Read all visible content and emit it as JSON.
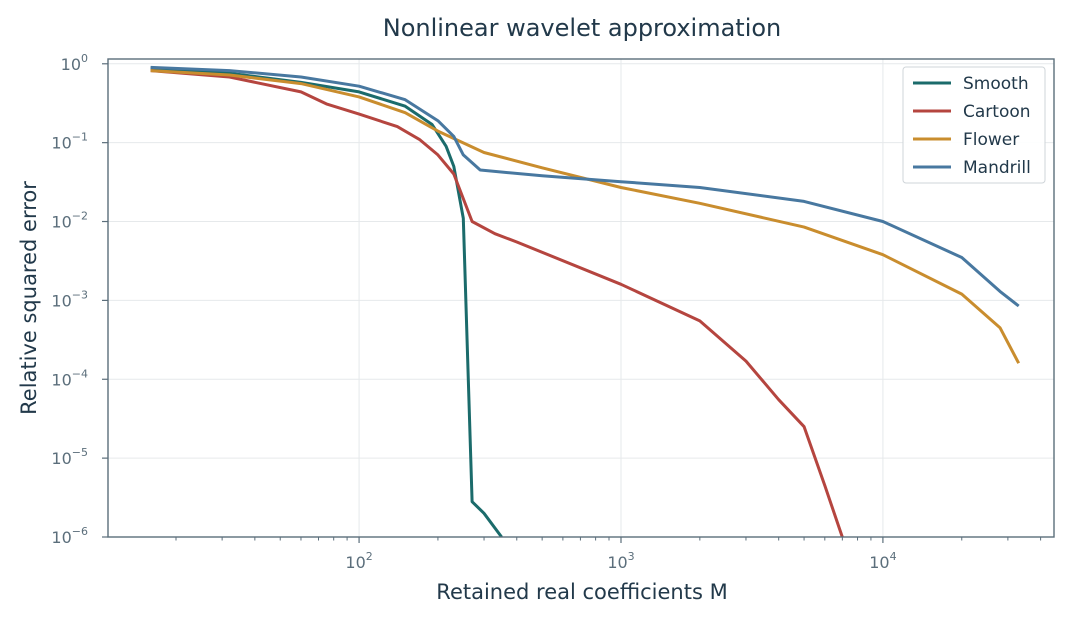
{
  "chart_data": {
    "type": "line",
    "title": "Nonlinear wavelet approximation",
    "xlabel": "Retained real coefficients M",
    "ylabel": "Relative squared error",
    "xscale": "log",
    "yscale": "log",
    "xlim": [
      11,
      45000
    ],
    "ylim": [
      1e-06,
      1.15
    ],
    "x_ticks": [
      {
        "value": 100,
        "base": "10",
        "exp": "2"
      },
      {
        "value": 1000,
        "base": "10",
        "exp": "3"
      },
      {
        "value": 10000,
        "base": "10",
        "exp": "4"
      }
    ],
    "y_ticks": [
      {
        "value": 1,
        "base": "10",
        "exp": "0"
      },
      {
        "value": 0.1,
        "base": "10",
        "exp": "−1"
      },
      {
        "value": 0.01,
        "base": "10",
        "exp": "−2"
      },
      {
        "value": 0.001,
        "base": "10",
        "exp": "−3"
      },
      {
        "value": 0.0001,
        "base": "10",
        "exp": "−4"
      },
      {
        "value": 1e-05,
        "base": "10",
        "exp": "−5"
      },
      {
        "value": 1e-06,
        "base": "10",
        "exp": "−6"
      }
    ],
    "grid": true,
    "legend_position": "top-right",
    "series": [
      {
        "name": "Smooth",
        "color": "#1b6b6b",
        "points": [
          [
            16,
            0.88
          ],
          [
            32,
            0.76
          ],
          [
            60,
            0.58
          ],
          [
            100,
            0.44
          ],
          [
            150,
            0.29
          ],
          [
            190,
            0.17
          ],
          [
            215,
            0.09
          ],
          [
            230,
            0.05
          ],
          [
            250,
            0.011
          ],
          [
            270,
            2.8e-06
          ],
          [
            300,
            2e-06
          ],
          [
            350,
            1e-06
          ]
        ]
      },
      {
        "name": "Cartoon",
        "color": "#b5453f",
        "points": [
          [
            16,
            0.82
          ],
          [
            32,
            0.68
          ],
          [
            60,
            0.44
          ],
          [
            75,
            0.31
          ],
          [
            100,
            0.23
          ],
          [
            140,
            0.16
          ],
          [
            170,
            0.11
          ],
          [
            200,
            0.07
          ],
          [
            230,
            0.04
          ],
          [
            270,
            0.01
          ],
          [
            330,
            0.007
          ],
          [
            400,
            0.0055
          ],
          [
            1000,
            0.0016
          ],
          [
            2000,
            0.00055
          ],
          [
            3000,
            0.00017
          ],
          [
            4000,
            5.5e-05
          ],
          [
            5000,
            2.5e-05
          ],
          [
            6000,
            4.5e-06
          ],
          [
            7000,
            1e-06
          ]
        ]
      },
      {
        "name": "Flower",
        "color": "#c98d2e",
        "points": [
          [
            16,
            0.82
          ],
          [
            32,
            0.72
          ],
          [
            60,
            0.56
          ],
          [
            100,
            0.38
          ],
          [
            150,
            0.24
          ],
          [
            200,
            0.14
          ],
          [
            300,
            0.075
          ],
          [
            500,
            0.048
          ],
          [
            1000,
            0.027
          ],
          [
            2000,
            0.017
          ],
          [
            5000,
            0.0085
          ],
          [
            10000,
            0.0038
          ],
          [
            20000,
            0.0012
          ],
          [
            28000,
            0.00045
          ],
          [
            33000,
            0.00016
          ]
        ]
      },
      {
        "name": "Mandrill",
        "color": "#4878a0",
        "points": [
          [
            16,
            0.9
          ],
          [
            32,
            0.82
          ],
          [
            60,
            0.68
          ],
          [
            100,
            0.52
          ],
          [
            150,
            0.35
          ],
          [
            200,
            0.19
          ],
          [
            230,
            0.12
          ],
          [
            250,
            0.07
          ],
          [
            290,
            0.045
          ],
          [
            500,
            0.038
          ],
          [
            1000,
            0.032
          ],
          [
            2000,
            0.027
          ],
          [
            5000,
            0.018
          ],
          [
            10000,
            0.01
          ],
          [
            20000,
            0.0035
          ],
          [
            28000,
            0.0013
          ],
          [
            33000,
            0.00085
          ]
        ]
      }
    ]
  }
}
